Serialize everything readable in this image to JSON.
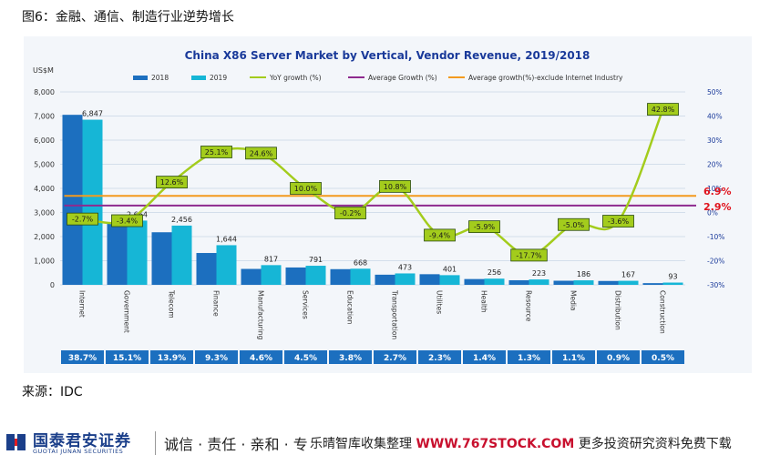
{
  "figure_title": "图6：金融、通信、制造行业逆势增长",
  "source_text": "来源：IDC",
  "footer": {
    "brand_cn": "国泰君安证券",
    "brand_en": "GUOTAI JUNAN SECURITIES",
    "slogan": "诚信 · 责任 · 亲和 · 专",
    "watermark_prefix": "乐晴智库收集整理 ",
    "watermark_url": "WWW.767STOCK.COM",
    "watermark_suffix": " 更多投资研究资料免费下载"
  },
  "chart_data": {
    "type": "bar",
    "title": "China X86 Server Market by Vertical, Vendor Revenue, 2019/2018",
    "unit_label": "US$M",
    "categories": [
      "Internet",
      "Government",
      "Telecom",
      "Finance",
      "Manufacturing",
      "Services",
      "Education",
      "Transportation",
      "Utilites",
      "Health",
      "Resource",
      "Media",
      "Distribution",
      "Construction"
    ],
    "series": [
      {
        "name": "2018",
        "color": "#1c6fbf",
        "values": [
          7050,
          2570,
          2180,
          1320,
          660,
          720,
          650,
          420,
          440,
          240,
          190,
          170,
          160,
          70
        ]
      },
      {
        "name": "2019",
        "color": "#16b6d6",
        "values": [
          6847,
          2664,
          2456,
          1644,
          817,
          791,
          668,
          473,
          401,
          256,
          223,
          186,
          167,
          93
        ]
      }
    ],
    "data_labels_2019": [
      "6,847",
      "2,664",
      "2,456",
      "1,644",
      "817",
      "791",
      "668",
      "473",
      "401",
      "256",
      "223",
      "186",
      "167",
      "93"
    ],
    "yoy": {
      "name": "YoY growth (%)",
      "color": "#a3cc1c",
      "values": [
        -2.7,
        -3.4,
        12.6,
        25.1,
        24.6,
        10.0,
        -0.2,
        10.8,
        -9.4,
        -5.9,
        -17.7,
        -5.0,
        -3.6,
        42.8
      ],
      "labels": [
        "-2.7%",
        "-3.4%",
        "12.6%",
        "25.1%",
        "24.6%",
        "10.0%",
        "-0.2%",
        "10.8%",
        "-9.4%",
        "-5.9%",
        "-17.7%",
        "-5.0%",
        "-3.6%",
        "42.8%"
      ]
    },
    "average_growth": {
      "name": "Average Growth (%)",
      "color": "#8e2a8e",
      "value": 2.9,
      "label": "2.9%"
    },
    "average_excl": {
      "name": "Average growth(%)-exclude Internet Industry",
      "color": "#f39a1e",
      "value": 6.9,
      "label": "6.9%"
    },
    "ylim_left": [
      0,
      8000
    ],
    "yticks_left": [
      "0",
      "1,000",
      "2,000",
      "3,000",
      "4,000",
      "5,000",
      "6,000",
      "7,000",
      "8,000"
    ],
    "ylim_right": [
      -30,
      50
    ],
    "yticks_right": [
      "-30%",
      "-20%",
      "-10%",
      "0%",
      "10%",
      "20%",
      "30%",
      "40%",
      "50%"
    ],
    "share_row": [
      "38.7%",
      "15.1%",
      "13.9%",
      "9.3%",
      "4.6%",
      "4.5%",
      "3.8%",
      "2.7%",
      "2.3%",
      "1.4%",
      "1.3%",
      "1.1%",
      "0.9%",
      "0.5%"
    ],
    "legend_position": "top",
    "grid": true
  }
}
